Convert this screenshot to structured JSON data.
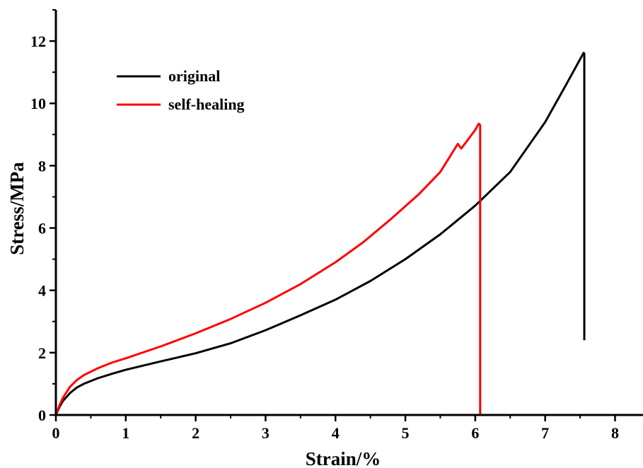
{
  "chart_data": {
    "type": "line",
    "title": "",
    "xlabel": "Strain/%",
    "ylabel": "Stress/MPa",
    "xlim": [
      0,
      8.4
    ],
    "ylim": [
      0,
      13
    ],
    "xticks": [
      0,
      1,
      2,
      3,
      4,
      5,
      6,
      7,
      8
    ],
    "yticks": [
      0,
      2,
      4,
      6,
      8,
      10,
      12
    ],
    "grid": false,
    "legend_position": "top-left",
    "series": [
      {
        "name": "original",
        "color": "#000000",
        "points": [
          [
            0,
            0
          ],
          [
            0.05,
            0.25
          ],
          [
            0.1,
            0.45
          ],
          [
            0.2,
            0.7
          ],
          [
            0.3,
            0.88
          ],
          [
            0.4,
            1.0
          ],
          [
            0.6,
            1.18
          ],
          [
            0.8,
            1.32
          ],
          [
            1.0,
            1.45
          ],
          [
            1.5,
            1.72
          ],
          [
            2.0,
            1.98
          ],
          [
            2.5,
            2.3
          ],
          [
            3.0,
            2.72
          ],
          [
            3.5,
            3.2
          ],
          [
            4.0,
            3.7
          ],
          [
            4.5,
            4.3
          ],
          [
            5.0,
            5.0
          ],
          [
            5.5,
            5.8
          ],
          [
            6.0,
            6.72
          ],
          [
            6.5,
            7.8
          ],
          [
            7.0,
            9.4
          ],
          [
            7.3,
            10.6
          ],
          [
            7.55,
            11.62
          ],
          [
            7.56,
            11.6
          ],
          [
            7.56,
            2.4
          ]
        ]
      },
      {
        "name": "self-healing",
        "color": "#ff0000",
        "points": [
          [
            0,
            0
          ],
          [
            0.05,
            0.3
          ],
          [
            0.1,
            0.55
          ],
          [
            0.2,
            0.9
          ],
          [
            0.3,
            1.12
          ],
          [
            0.4,
            1.28
          ],
          [
            0.6,
            1.5
          ],
          [
            0.8,
            1.68
          ],
          [
            1.0,
            1.82
          ],
          [
            1.5,
            2.2
          ],
          [
            2.0,
            2.62
          ],
          [
            2.5,
            3.08
          ],
          [
            3.0,
            3.6
          ],
          [
            3.5,
            4.2
          ],
          [
            4.0,
            4.9
          ],
          [
            4.4,
            5.55
          ],
          [
            4.8,
            6.3
          ],
          [
            5.2,
            7.1
          ],
          [
            5.5,
            7.8
          ],
          [
            5.75,
            8.7
          ],
          [
            5.8,
            8.55
          ],
          [
            6.0,
            9.15
          ],
          [
            6.05,
            9.35
          ],
          [
            6.07,
            9.3
          ],
          [
            6.07,
            0
          ]
        ]
      }
    ]
  }
}
